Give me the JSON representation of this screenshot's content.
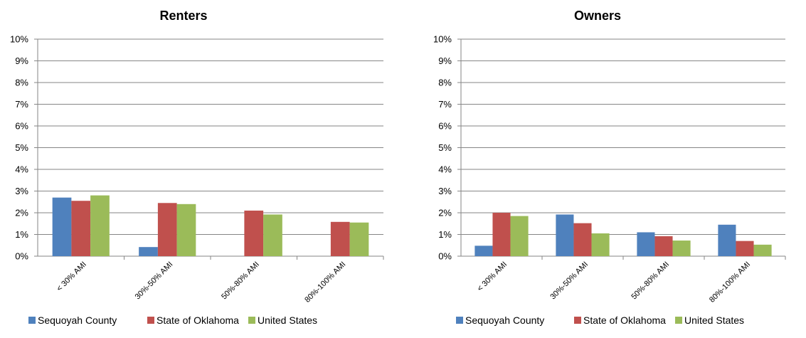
{
  "chart_data": [
    {
      "type": "bar",
      "title": "Renters",
      "categories": [
        "< 30% AMI",
        "30%-50% AMI",
        "50%-80% AMI",
        "80%-100% AMI"
      ],
      "series": [
        {
          "name": "Sequoyah County",
          "color": "#4F81BD",
          "values": [
            2.7,
            0.42,
            0,
            0
          ]
        },
        {
          "name": "State of Oklahoma",
          "color": "#C0504D",
          "values": [
            2.55,
            2.45,
            2.1,
            1.58
          ]
        },
        {
          "name": "United States",
          "color": "#9BBB59",
          "values": [
            2.8,
            2.4,
            1.92,
            1.55
          ]
        }
      ],
      "yticks": [
        "0%",
        "1%",
        "2%",
        "3%",
        "4%",
        "5%",
        "6%",
        "7%",
        "8%",
        "9%",
        "10%"
      ],
      "ylim": [
        0,
        10
      ],
      "yunit": "%",
      "grid": true,
      "legend": "bottom"
    },
    {
      "type": "bar",
      "title": "Owners",
      "categories": [
        "< 30% AMI",
        "30%-50% AMI",
        "50%-80% AMI",
        "80%-100% AMI"
      ],
      "series": [
        {
          "name": "Sequoyah County",
          "color": "#4F81BD",
          "values": [
            0.48,
            1.92,
            1.1,
            1.45
          ]
        },
        {
          "name": "State of Oklahoma",
          "color": "#C0504D",
          "values": [
            2.0,
            1.52,
            0.92,
            0.7
          ]
        },
        {
          "name": "United States",
          "color": "#9BBB59",
          "values": [
            1.85,
            1.05,
            0.72,
            0.53
          ]
        }
      ],
      "yticks": [
        "0%",
        "1%",
        "2%",
        "3%",
        "4%",
        "5%",
        "6%",
        "7%",
        "8%",
        "9%",
        "10%"
      ],
      "ylim": [
        0,
        10
      ],
      "yunit": "%",
      "grid": true,
      "legend": "bottom"
    }
  ]
}
